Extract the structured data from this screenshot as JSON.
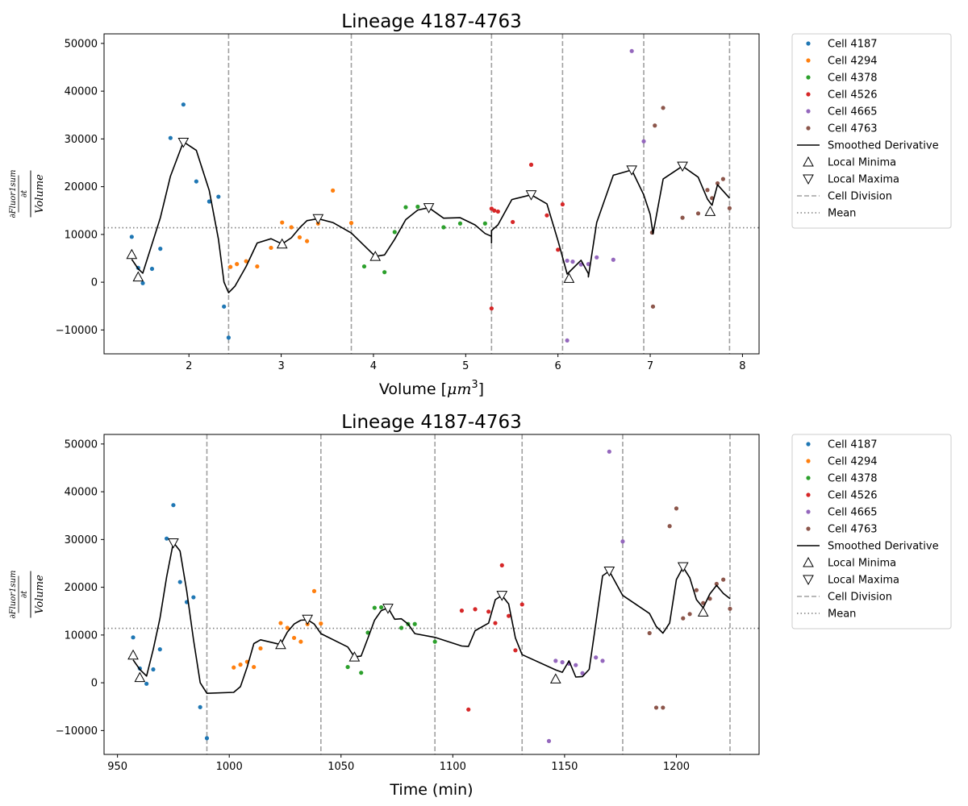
{
  "chart_data": [
    {
      "type": "scatter",
      "title": "Lineage 4187-4763",
      "xlabel": "Volume [μm³]",
      "xlabel_prefix": "Volume [",
      "xlabel_unit": "μm",
      "xlabel_exp": "3",
      "xlabel_suffix": "]",
      "ylabel_numerator": "∂Fluor1sum",
      "ylabel_denominator_top": "∂t",
      "ylabel_denominator": "Volume",
      "xlim": [
        1.08,
        8.18
      ],
      "ylim": [
        -15000,
        52000
      ],
      "xticks": [
        2,
        3,
        4,
        5,
        6,
        7,
        8
      ],
      "yticks": [
        -10000,
        0,
        10000,
        20000,
        30000,
        40000,
        50000
      ],
      "mean": 11400,
      "cell_division": [
        2.43,
        3.76,
        5.28,
        6.05,
        6.93,
        7.86
      ],
      "series": [
        {
          "name": "Cell 4187",
          "color": "#1f77b4",
          "points": [
            [
              1.38,
              9500
            ],
            [
              1.45,
              3000
            ],
            [
              1.5,
              -200
            ],
            [
              1.6,
              2800
            ],
            [
              1.69,
              7000
            ],
            [
              1.8,
              30200
            ],
            [
              1.94,
              37200
            ],
            [
              2.08,
              21100
            ],
            [
              2.22,
              16900
            ],
            [
              2.32,
              17900
            ],
            [
              2.38,
              -5100
            ],
            [
              2.43,
              -11600
            ]
          ]
        },
        {
          "name": "Cell 4294",
          "color": "#ff7f0e",
          "points": [
            [
              2.45,
              3200
            ],
            [
              2.52,
              3800
            ],
            [
              2.62,
              4400
            ],
            [
              2.74,
              3300
            ],
            [
              2.89,
              7200
            ],
            [
              3.01,
              12500
            ],
            [
              3.11,
              11500
            ],
            [
              3.2,
              9400
            ],
            [
              3.28,
              8600
            ],
            [
              3.4,
              12300
            ],
            [
              3.56,
              19200
            ],
            [
              3.76,
              12400
            ]
          ]
        },
        {
          "name": "Cell 4378",
          "color": "#2ca02c",
          "points": [
            [
              3.9,
              3300
            ],
            [
              4.12,
              2100
            ],
            [
              4.23,
              10500
            ],
            [
              4.35,
              15700
            ],
            [
              4.48,
              15800
            ],
            [
              4.76,
              11500
            ],
            [
              4.94,
              12300
            ],
            [
              5.21,
              12300
            ]
          ]
        },
        {
          "name": "Cell 4526",
          "color": "#d62728",
          "points": [
            [
              5.28,
              15400
            ],
            [
              5.31,
              15000
            ],
            [
              5.35,
              14800
            ],
            [
              5.28,
              -5500
            ],
            [
              5.51,
              12600
            ],
            [
              5.71,
              24600
            ],
            [
              5.88,
              14000
            ],
            [
              6.0,
              6800
            ],
            [
              6.05,
              16300
            ]
          ]
        },
        {
          "name": "Cell 4665",
          "color": "#9467bd",
          "points": [
            [
              6.1,
              4500
            ],
            [
              6.16,
              4300
            ],
            [
              6.25,
              3700
            ],
            [
              6.33,
              3800
            ],
            [
              6.42,
              5200
            ],
            [
              6.6,
              4700
            ],
            [
              6.1,
              -12200
            ],
            [
              6.8,
              48400
            ],
            [
              6.93,
              29500
            ]
          ]
        },
        {
          "name": "Cell 4763",
          "color": "#8c564b",
          "points": [
            [
              7.02,
              10400
            ],
            [
              7.05,
              32800
            ],
            [
              7.14,
              36500
            ],
            [
              7.03,
              -5100
            ],
            [
              7.35,
              13500
            ],
            [
              7.52,
              14400
            ],
            [
              7.62,
              19300
            ],
            [
              7.67,
              17600
            ],
            [
              7.73,
              20700
            ],
            [
              7.79,
              21600
            ],
            [
              7.86,
              15500
            ]
          ]
        }
      ],
      "smoothed": [
        [
          1.38,
          4800
        ],
        [
          1.45,
          2800
        ],
        [
          1.5,
          1900
        ],
        [
          1.69,
          13500
        ],
        [
          1.8,
          22200
        ],
        [
          1.94,
          29400
        ],
        [
          2.08,
          27600
        ],
        [
          2.22,
          19200
        ],
        [
          2.32,
          9000
        ],
        [
          2.38,
          0
        ],
        [
          2.43,
          -2200
        ],
        [
          2.5,
          -800
        ],
        [
          2.62,
          3300
        ],
        [
          2.74,
          8200
        ],
        [
          2.89,
          9100
        ],
        [
          3.01,
          8000
        ],
        [
          3.11,
          9300
        ],
        [
          3.2,
          11400
        ],
        [
          3.28,
          12900
        ],
        [
          3.4,
          13300
        ],
        [
          3.56,
          12500
        ],
        [
          3.76,
          10300
        ],
        [
          4.02,
          5400
        ],
        [
          4.12,
          5700
        ],
        [
          4.23,
          9000
        ],
        [
          4.35,
          13100
        ],
        [
          4.48,
          15100
        ],
        [
          4.6,
          15600
        ],
        [
          4.76,
          13400
        ],
        [
          4.94,
          13500
        ],
        [
          5.1,
          12000
        ],
        [
          5.21,
          10200
        ],
        [
          5.28,
          9600
        ],
        [
          5.28,
          8200
        ],
        [
          5.28,
          10800
        ],
        [
          5.35,
          12000
        ],
        [
          5.5,
          17300
        ],
        [
          5.71,
          18300
        ],
        [
          5.88,
          16400
        ],
        [
          6.0,
          8700
        ],
        [
          6.1,
          1700
        ],
        [
          6.25,
          4600
        ],
        [
          6.33,
          1800
        ],
        [
          6.33,
          1100
        ],
        [
          6.42,
          12500
        ],
        [
          6.6,
          22400
        ],
        [
          6.8,
          23500
        ],
        [
          6.93,
          18300
        ],
        [
          7.0,
          14200
        ],
        [
          7.03,
          10100
        ],
        [
          7.14,
          21600
        ],
        [
          7.35,
          24300
        ],
        [
          7.52,
          22000
        ],
        [
          7.62,
          17400
        ],
        [
          7.67,
          16100
        ],
        [
          7.73,
          20400
        ],
        [
          7.86,
          17600
        ]
      ],
      "local_minima": [
        [
          1.38,
          5800
        ],
        [
          1.45,
          1100
        ],
        [
          3.01,
          8000
        ],
        [
          4.02,
          5400
        ],
        [
          6.12,
          800
        ],
        [
          7.65,
          14800
        ]
      ],
      "local_maxima": [
        [
          1.94,
          29300
        ],
        [
          3.4,
          13300
        ],
        [
          4.6,
          15600
        ],
        [
          5.71,
          18300
        ],
        [
          6.8,
          23500
        ],
        [
          7.35,
          24300
        ]
      ]
    },
    {
      "type": "scatter",
      "title": "Lineage 4187-4763",
      "xlabel": "Time (min)",
      "ylabel_numerator": "∂Fluor1sum",
      "ylabel_denominator_top": "∂t",
      "ylabel_denominator": "Volume",
      "xlim": [
        944,
        1237
      ],
      "ylim": [
        -15000,
        52000
      ],
      "xticks": [
        950,
        1000,
        1050,
        1100,
        1150,
        1200
      ],
      "yticks": [
        -10000,
        0,
        10000,
        20000,
        30000,
        40000,
        50000
      ],
      "mean": 11400,
      "cell_division": [
        990,
        1041,
        1092,
        1131,
        1176,
        1224
      ],
      "series": [
        {
          "name": "Cell 4187",
          "color": "#1f77b4",
          "points": [
            [
              957,
              9500
            ],
            [
              960,
              3000
            ],
            [
              963,
              -200
            ],
            [
              966,
              2800
            ],
            [
              969,
              7000
            ],
            [
              972,
              30200
            ],
            [
              975,
              37200
            ],
            [
              978,
              21100
            ],
            [
              981,
              16900
            ],
            [
              984,
              17900
            ],
            [
              987,
              -5100
            ],
            [
              990,
              -11600
            ]
          ]
        },
        {
          "name": "Cell 4294",
          "color": "#ff7f0e",
          "points": [
            [
              1002,
              3200
            ],
            [
              1005,
              3800
            ],
            [
              1008,
              4400
            ],
            [
              1011,
              3300
            ],
            [
              1014,
              7200
            ],
            [
              1023,
              12500
            ],
            [
              1026,
              11500
            ],
            [
              1029,
              9400
            ],
            [
              1032,
              8600
            ],
            [
              1035,
              12300
            ],
            [
              1038,
              19200
            ],
            [
              1041,
              12400
            ]
          ]
        },
        {
          "name": "Cell 4378",
          "color": "#2ca02c",
          "points": [
            [
              1053,
              3300
            ],
            [
              1059,
              2100
            ],
            [
              1062,
              10500
            ],
            [
              1065,
              15700
            ],
            [
              1068,
              15800
            ],
            [
              1077,
              11500
            ],
            [
              1080,
              12300
            ],
            [
              1083,
              12300
            ],
            [
              1092,
              8600
            ]
          ]
        },
        {
          "name": "Cell 4526",
          "color": "#d62728",
          "points": [
            [
              1104,
              15100
            ],
            [
              1107,
              -5600
            ],
            [
              1110,
              15400
            ],
            [
              1116,
              14900
            ],
            [
              1119,
              12500
            ],
            [
              1122,
              24600
            ],
            [
              1125,
              14000
            ],
            [
              1128,
              6800
            ],
            [
              1131,
              16400
            ]
          ]
        },
        {
          "name": "Cell 4665",
          "color": "#9467bd",
          "points": [
            [
              1146,
              4600
            ],
            [
              1149,
              4300
            ],
            [
              1152,
              4000
            ],
            [
              1155,
              3700
            ],
            [
              1158,
              2000
            ],
            [
              1164,
              5300
            ],
            [
              1167,
              4600
            ],
            [
              1143,
              -12200
            ],
            [
              1170,
              48400
            ],
            [
              1176,
              29600
            ]
          ]
        },
        {
          "name": "Cell 4763",
          "color": "#8c564b",
          "points": [
            [
              1188,
              10400
            ],
            [
              1191,
              -5200
            ],
            [
              1194,
              -5200
            ],
            [
              1197,
              32800
            ],
            [
              1200,
              36500
            ],
            [
              1203,
              13500
            ],
            [
              1206,
              14400
            ],
            [
              1209,
              19400
            ],
            [
              1212,
              16700
            ],
            [
              1215,
              17600
            ],
            [
              1218,
              20700
            ],
            [
              1221,
              21600
            ],
            [
              1224,
              15500
            ]
          ]
        }
      ],
      "smoothed": [
        [
          957,
          4800
        ],
        [
          960,
          2800
        ],
        [
          963,
          1400
        ],
        [
          966,
          7000
        ],
        [
          969,
          13500
        ],
        [
          972,
          22200
        ],
        [
          975,
          29400
        ],
        [
          978,
          27600
        ],
        [
          981,
          19200
        ],
        [
          984,
          9000
        ],
        [
          987,
          0
        ],
        [
          990,
          -2200
        ],
        [
          1002,
          -2000
        ],
        [
          1005,
          -800
        ],
        [
          1008,
          3300
        ],
        [
          1011,
          8200
        ],
        [
          1014,
          9000
        ],
        [
          1023,
          8000
        ],
        [
          1026,
          10600
        ],
        [
          1029,
          12300
        ],
        [
          1032,
          13100
        ],
        [
          1035,
          13200
        ],
        [
          1038,
          12300
        ],
        [
          1041,
          10300
        ],
        [
          1053,
          7500
        ],
        [
          1056,
          5400
        ],
        [
          1059,
          5600
        ],
        [
          1062,
          9300
        ],
        [
          1065,
          13100
        ],
        [
          1068,
          15100
        ],
        [
          1071,
          15700
        ],
        [
          1074,
          13300
        ],
        [
          1077,
          13400
        ],
        [
          1080,
          12300
        ],
        [
          1083,
          10300
        ],
        [
          1092,
          9500
        ],
        [
          1104,
          7700
        ],
        [
          1107,
          7600
        ],
        [
          1110,
          10900
        ],
        [
          1116,
          12500
        ],
        [
          1119,
          17400
        ],
        [
          1122,
          18300
        ],
        [
          1125,
          16500
        ],
        [
          1128,
          9400
        ],
        [
          1131,
          5900
        ],
        [
          1146,
          2700
        ],
        [
          1149,
          2200
        ],
        [
          1152,
          4600
        ],
        [
          1155,
          1200
        ],
        [
          1158,
          1300
        ],
        [
          1161,
          2800
        ],
        [
          1164,
          12500
        ],
        [
          1167,
          22400
        ],
        [
          1170,
          23400
        ],
        [
          1176,
          18300
        ],
        [
          1188,
          14500
        ],
        [
          1191,
          11800
        ],
        [
          1194,
          10400
        ],
        [
          1197,
          12500
        ],
        [
          1200,
          21600
        ],
        [
          1203,
          24200
        ],
        [
          1206,
          22000
        ],
        [
          1209,
          17400
        ],
        [
          1212,
          15700
        ],
        [
          1215,
          18600
        ],
        [
          1218,
          20400
        ],
        [
          1221,
          18700
        ],
        [
          1224,
          17600
        ]
      ],
      "local_minima": [
        [
          957,
          5800
        ],
        [
          960,
          1100
        ],
        [
          1023,
          8000
        ],
        [
          1056,
          5400
        ],
        [
          1146,
          800
        ],
        [
          1212,
          14800
        ]
      ],
      "local_maxima": [
        [
          975,
          29300
        ],
        [
          1035,
          13300
        ],
        [
          1071,
          15600
        ],
        [
          1122,
          18300
        ],
        [
          1170,
          23400
        ],
        [
          1203,
          24300
        ]
      ]
    }
  ],
  "legend": {
    "smoothed_label": "Smoothed Derivative",
    "minima_label": "Local Minima",
    "maxima_label": "Local Maxima",
    "division_label": "Cell Division",
    "mean_label": "Mean"
  }
}
